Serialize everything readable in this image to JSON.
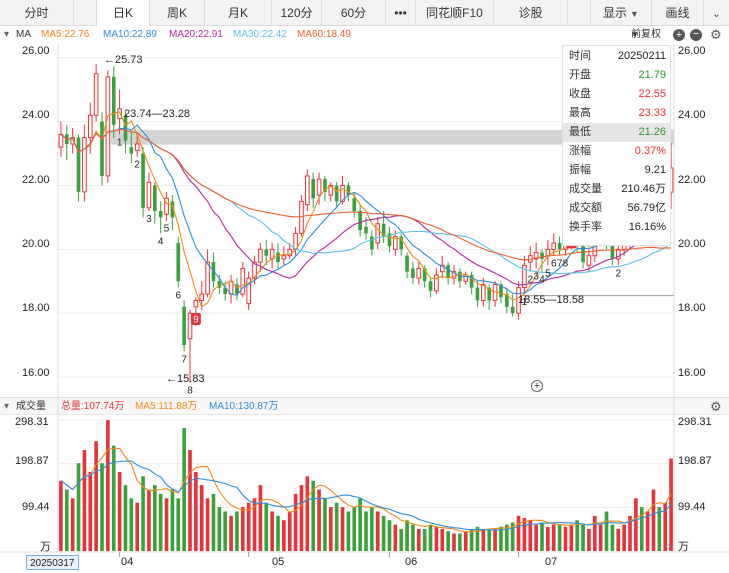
{
  "colors": {
    "up": "#e8333c",
    "down": "#3aa23a",
    "ma5": "#f08a17",
    "ma10": "#2a8fd8",
    "ma20": "#b4279d",
    "ma30": "#58c2e8",
    "ma60": "#f0602a",
    "total": "#e8333c",
    "label_red": "#e83030",
    "label_green": "#2a9a2a",
    "label_blue": "#2a8fd8"
  },
  "tabs": [
    {
      "label": "分时"
    },
    {
      "label": "日K",
      "active": true
    },
    {
      "label": "周K"
    },
    {
      "label": "月K"
    },
    {
      "label": "120分"
    },
    {
      "label": "60分"
    },
    {
      "label": "•••"
    },
    {
      "label": "同花顺F10"
    },
    {
      "label": "诊股"
    }
  ],
  "toolbar": {
    "display_label": "显示",
    "draw_label": "画线"
  },
  "ma_legend": {
    "title": "MA",
    "ma5": "MA5:22.76",
    "ma10": "MA10:22.89",
    "ma20": "MA20:22.91",
    "ma30": "MA30:22.42",
    "ma60": "MA60:18.49",
    "adjust": "前复权"
  },
  "price_axis": [
    "26.00",
    "24.00",
    "22.00",
    "20.00",
    "18.00",
    "16.00"
  ],
  "annotations": {
    "high": "←25.73",
    "low": "←15.83",
    "range1": "23.74—23.28",
    "range2": "18.55—18.58"
  },
  "info_panel": [
    {
      "label": "时间",
      "value": "20250211",
      "color": "#222"
    },
    {
      "label": "开盘",
      "value": "21.79",
      "color": "#2a9a2a"
    },
    {
      "label": "收盘",
      "value": "22.55",
      "color": "#e83030"
    },
    {
      "label": "最高",
      "value": "23.33",
      "color": "#e83030"
    },
    {
      "label": "最低",
      "value": "21.26",
      "color": "#2a9a2a",
      "highlight": true
    },
    {
      "label": "涨幅",
      "value": "0.37%",
      "color": "#e83030"
    },
    {
      "label": "振幅",
      "value": "9.21",
      "color": "#222"
    },
    {
      "label": "成交量",
      "value": "210.46万",
      "color": "#222"
    },
    {
      "label": "成交额",
      "value": "56.79亿",
      "color": "#222"
    },
    {
      "label": "换手率",
      "value": "16.16%",
      "color": "#222"
    }
  ],
  "volume_legend": {
    "title": "成交量",
    "total": "总量:107.74万",
    "ma5": "MA5:111.88万",
    "ma10": "MA10:130.87万"
  },
  "volume_axis": [
    "298.31",
    "198.87",
    "99.44"
  ],
  "volume_unit": "万",
  "x_axis": {
    "start_date": "20250317",
    "months": [
      "04",
      "05",
      "06",
      "07"
    ]
  },
  "chart_data": {
    "type": "candlestick",
    "price_ylim": [
      15.5,
      26.4
    ],
    "volume_ylim": [
      0,
      298.31
    ],
    "candles": [
      {
        "o": 23.2,
        "c": 23.6,
        "h": 24.0,
        "l": 22.9,
        "v": 160
      },
      {
        "o": 23.6,
        "c": 23.3,
        "h": 23.9,
        "l": 22.8,
        "v": 140
      },
      {
        "o": 23.3,
        "c": 23.5,
        "h": 23.8,
        "l": 23.0,
        "v": 120
      },
      {
        "o": 23.5,
        "c": 21.8,
        "h": 23.6,
        "l": 21.5,
        "v": 200
      },
      {
        "o": 21.8,
        "c": 23.5,
        "h": 23.9,
        "l": 21.5,
        "v": 230
      },
      {
        "o": 23.5,
        "c": 24.2,
        "h": 24.6,
        "l": 23.0,
        "v": 180
      },
      {
        "o": 24.2,
        "c": 25.5,
        "h": 25.8,
        "l": 24.0,
        "v": 250
      },
      {
        "o": 24.0,
        "c": 22.3,
        "h": 24.3,
        "l": 22.0,
        "v": 200
      },
      {
        "o": 22.3,
        "c": 25.4,
        "h": 25.6,
        "l": 22.1,
        "v": 298
      },
      {
        "o": 25.4,
        "c": 23.9,
        "h": 25.73,
        "l": 23.5,
        "v": 240
      },
      {
        "o": 24.1,
        "c": 24.4,
        "h": 25.0,
        "l": 23.6,
        "v": 180
      },
      {
        "o": 24.2,
        "c": 23.4,
        "h": 24.3,
        "l": 23.0,
        "v": 150
      },
      {
        "o": 23.2,
        "c": 23.0,
        "h": 23.7,
        "l": 22.7,
        "v": 120
      },
      {
        "o": 23.1,
        "c": 23.3,
        "h": 23.6,
        "l": 22.9,
        "v": 110
      },
      {
        "o": 23.0,
        "c": 21.3,
        "h": 23.2,
        "l": 21.0,
        "v": 170
      },
      {
        "o": 21.3,
        "c": 22.1,
        "h": 22.4,
        "l": 21.2,
        "v": 140
      },
      {
        "o": 22.0,
        "c": 21.2,
        "h": 22.1,
        "l": 20.8,
        "v": 150
      },
      {
        "o": 21.2,
        "c": 21.0,
        "h": 21.5,
        "l": 20.5,
        "v": 130
      },
      {
        "o": 21.1,
        "c": 21.6,
        "h": 21.8,
        "l": 20.9,
        "v": 120
      },
      {
        "o": 21.5,
        "c": 21.0,
        "h": 21.7,
        "l": 20.6,
        "v": 140
      },
      {
        "o": 20.2,
        "c": 19.0,
        "h": 20.4,
        "l": 18.8,
        "v": 120
      },
      {
        "o": 18.2,
        "c": 17.0,
        "h": 18.4,
        "l": 16.8,
        "v": 280
      },
      {
        "o": 17.2,
        "c": 18.0,
        "h": 18.1,
        "l": 15.83,
        "v": 230
      },
      {
        "o": 18.2,
        "c": 18.4,
        "h": 18.5,
        "l": 17.6,
        "v": 180
      },
      {
        "o": 18.4,
        "c": 18.6,
        "h": 19.0,
        "l": 18.1,
        "v": 150
      },
      {
        "o": 18.6,
        "c": 19.6,
        "h": 20.0,
        "l": 18.5,
        "v": 120
      },
      {
        "o": 19.6,
        "c": 19.0,
        "h": 19.9,
        "l": 18.8,
        "v": 130
      },
      {
        "o": 19.0,
        "c": 18.8,
        "h": 19.2,
        "l": 18.6,
        "v": 100
      },
      {
        "o": 18.8,
        "c": 18.6,
        "h": 19.0,
        "l": 18.4,
        "v": 90
      },
      {
        "o": 18.6,
        "c": 19.0,
        "h": 19.2,
        "l": 18.3,
        "v": 80
      },
      {
        "o": 18.9,
        "c": 18.6,
        "h": 19.1,
        "l": 18.4,
        "v": 90
      },
      {
        "o": 18.6,
        "c": 19.4,
        "h": 19.6,
        "l": 18.5,
        "v": 100
      },
      {
        "o": 18.3,
        "c": 19.1,
        "h": 19.3,
        "l": 18.1,
        "v": 110
      },
      {
        "o": 19.1,
        "c": 19.6,
        "h": 19.8,
        "l": 18.9,
        "v": 120
      },
      {
        "o": 19.6,
        "c": 20.0,
        "h": 20.2,
        "l": 19.3,
        "v": 150
      },
      {
        "o": 20.0,
        "c": 19.8,
        "h": 20.3,
        "l": 19.5,
        "v": 110
      },
      {
        "o": 19.7,
        "c": 20.0,
        "h": 20.2,
        "l": 19.4,
        "v": 90
      },
      {
        "o": 19.9,
        "c": 19.6,
        "h": 20.2,
        "l": 19.4,
        "v": 80
      },
      {
        "o": 19.7,
        "c": 19.8,
        "h": 20.1,
        "l": 19.5,
        "v": 70
      },
      {
        "o": 19.8,
        "c": 20.0,
        "h": 20.2,
        "l": 19.7,
        "v": 90
      },
      {
        "o": 20.0,
        "c": 20.5,
        "h": 20.7,
        "l": 19.8,
        "v": 130
      },
      {
        "o": 20.5,
        "c": 21.5,
        "h": 21.7,
        "l": 20.4,
        "v": 150
      },
      {
        "o": 21.4,
        "c": 22.3,
        "h": 22.5,
        "l": 21.2,
        "v": 170
      },
      {
        "o": 22.2,
        "c": 21.6,
        "h": 22.4,
        "l": 21.3,
        "v": 160
      },
      {
        "o": 21.7,
        "c": 22.2,
        "h": 22.4,
        "l": 21.4,
        "v": 140
      },
      {
        "o": 22.2,
        "c": 21.8,
        "h": 22.3,
        "l": 21.5,
        "v": 120
      },
      {
        "o": 21.7,
        "c": 22.0,
        "h": 22.1,
        "l": 21.5,
        "v": 100
      },
      {
        "o": 22.0,
        "c": 21.5,
        "h": 22.1,
        "l": 21.3,
        "v": 110
      },
      {
        "o": 21.5,
        "c": 22.0,
        "h": 22.3,
        "l": 21.4,
        "v": 100
      },
      {
        "o": 22.0,
        "c": 21.7,
        "h": 22.1,
        "l": 21.5,
        "v": 90
      },
      {
        "o": 21.6,
        "c": 21.2,
        "h": 21.8,
        "l": 21.0,
        "v": 100
      },
      {
        "o": 21.2,
        "c": 20.6,
        "h": 21.4,
        "l": 20.4,
        "v": 120
      },
      {
        "o": 20.7,
        "c": 20.5,
        "h": 21.0,
        "l": 20.3,
        "v": 90
      },
      {
        "o": 20.4,
        "c": 20.0,
        "h": 20.6,
        "l": 19.8,
        "v": 100
      },
      {
        "o": 20.2,
        "c": 20.8,
        "h": 21.0,
        "l": 20.0,
        "v": 90
      },
      {
        "o": 20.8,
        "c": 20.4,
        "h": 21.2,
        "l": 20.2,
        "v": 80
      },
      {
        "o": 20.5,
        "c": 20.1,
        "h": 20.7,
        "l": 19.9,
        "v": 70
      },
      {
        "o": 20.0,
        "c": 20.4,
        "h": 20.6,
        "l": 19.8,
        "v": 60
      },
      {
        "o": 20.4,
        "c": 20.0,
        "h": 20.5,
        "l": 19.8,
        "v": 50
      },
      {
        "o": 19.8,
        "c": 19.3,
        "h": 19.9,
        "l": 19.1,
        "v": 70
      },
      {
        "o": 19.4,
        "c": 19.1,
        "h": 19.6,
        "l": 18.9,
        "v": 60
      },
      {
        "o": 19.1,
        "c": 19.4,
        "h": 19.6,
        "l": 18.9,
        "v": 50
      },
      {
        "o": 19.4,
        "c": 19.0,
        "h": 19.5,
        "l": 18.8,
        "v": 50
      },
      {
        "o": 19.0,
        "c": 18.7,
        "h": 19.1,
        "l": 18.5,
        "v": 60
      },
      {
        "o": 18.7,
        "c": 19.2,
        "h": 19.4,
        "l": 18.6,
        "v": 55
      },
      {
        "o": 19.3,
        "c": 19.5,
        "h": 19.8,
        "l": 19.1,
        "v": 50
      },
      {
        "o": 19.5,
        "c": 19.1,
        "h": 19.6,
        "l": 18.9,
        "v": 45
      },
      {
        "o": 19.1,
        "c": 19.3,
        "h": 19.5,
        "l": 18.9,
        "v": 40
      },
      {
        "o": 19.3,
        "c": 19.0,
        "h": 19.4,
        "l": 18.8,
        "v": 40
      },
      {
        "o": 19.0,
        "c": 19.2,
        "h": 19.3,
        "l": 18.9,
        "v": 45
      },
      {
        "o": 19.2,
        "c": 18.8,
        "h": 19.3,
        "l": 18.6,
        "v": 50
      },
      {
        "o": 18.8,
        "c": 18.4,
        "h": 19.0,
        "l": 18.2,
        "v": 55
      },
      {
        "o": 18.4,
        "c": 18.9,
        "h": 19.1,
        "l": 18.2,
        "v": 50
      },
      {
        "o": 18.8,
        "c": 18.4,
        "h": 18.9,
        "l": 18.1,
        "v": 50
      },
      {
        "o": 18.4,
        "c": 18.9,
        "h": 19.0,
        "l": 18.2,
        "v": 50
      },
      {
        "o": 18.9,
        "c": 18.5,
        "h": 19.0,
        "l": 18.3,
        "v": 55
      },
      {
        "o": 18.6,
        "c": 18.2,
        "h": 18.8,
        "l": 18.0,
        "v": 60
      },
      {
        "o": 18.2,
        "c": 18.0,
        "h": 18.6,
        "l": 17.9,
        "v": 65
      },
      {
        "o": 18.0,
        "c": 18.8,
        "h": 19.0,
        "l": 17.8,
        "v": 80
      },
      {
        "o": 18.8,
        "c": 19.5,
        "h": 19.8,
        "l": 18.6,
        "v": 75
      },
      {
        "o": 19.6,
        "c": 19.8,
        "h": 20.1,
        "l": 19.3,
        "v": 70
      },
      {
        "o": 19.7,
        "c": 19.9,
        "h": 20.2,
        "l": 19.4,
        "v": 60
      },
      {
        "o": 19.9,
        "c": 19.7,
        "h": 20.0,
        "l": 19.3,
        "v": 65
      },
      {
        "o": 19.8,
        "c": 20.0,
        "h": 20.3,
        "l": 19.5,
        "v": 55
      },
      {
        "o": 20.0,
        "c": 20.2,
        "h": 20.5,
        "l": 19.8,
        "v": 60
      },
      {
        "o": 20.2,
        "c": 20.0,
        "h": 20.4,
        "l": 19.8,
        "v": 60
      },
      {
        "o": 20.0,
        "c": 20.3,
        "h": 20.6,
        "l": 19.8,
        "v": 55
      },
      {
        "o": 20.3,
        "c": 20.6,
        "h": 20.8,
        "l": 20.0,
        "v": 60
      },
      {
        "o": 20.6,
        "c": 20.2,
        "h": 20.7,
        "l": 19.9,
        "v": 70
      },
      {
        "o": 20.1,
        "c": 19.6,
        "h": 20.2,
        "l": 19.4,
        "v": 60
      },
      {
        "o": 19.5,
        "c": 19.8,
        "h": 20.0,
        "l": 19.3,
        "v": 50
      },
      {
        "o": 19.8,
        "c": 20.4,
        "h": 20.6,
        "l": 19.6,
        "v": 80
      },
      {
        "o": 20.4,
        "c": 20.6,
        "h": 20.8,
        "l": 20.1,
        "v": 60
      },
      {
        "o": 20.6,
        "c": 20.2,
        "h": 20.8,
        "l": 20.0,
        "v": 90
      },
      {
        "o": 20.2,
        "c": 19.7,
        "h": 20.4,
        "l": 19.5,
        "v": 60
      },
      {
        "o": 19.7,
        "c": 20.0,
        "h": 20.2,
        "l": 19.5,
        "v": 50
      },
      {
        "o": 20.0,
        "c": 20.3,
        "h": 20.4,
        "l": 19.8,
        "v": 60
      },
      {
        "o": 20.2,
        "c": 20.8,
        "h": 21.0,
        "l": 20.0,
        "v": 80
      },
      {
        "o": 20.8,
        "c": 21.3,
        "h": 21.6,
        "l": 20.6,
        "v": 120
      },
      {
        "o": 21.3,
        "c": 21.0,
        "h": 21.5,
        "l": 20.8,
        "v": 100
      },
      {
        "o": 21.0,
        "c": 21.4,
        "h": 21.7,
        "l": 20.8,
        "v": 90
      },
      {
        "o": 21.4,
        "c": 21.8,
        "h": 22.0,
        "l": 21.2,
        "v": 140
      },
      {
        "o": 21.8,
        "c": 20.8,
        "h": 22.0,
        "l": 20.6,
        "v": 100
      },
      {
        "o": 20.8,
        "c": 21.5,
        "h": 21.8,
        "l": 20.6,
        "v": 110
      },
      {
        "o": 21.79,
        "c": 22.55,
        "h": 23.33,
        "l": 21.26,
        "v": 210.46
      }
    ],
    "markers": [
      {
        "i": 10,
        "text": "1"
      },
      {
        "i": 13,
        "text": "2"
      },
      {
        "i": 15,
        "text": "3"
      },
      {
        "i": 17,
        "text": "4"
      },
      {
        "i": 18,
        "text": "5"
      },
      {
        "i": 20,
        "text": "6"
      },
      {
        "i": 21,
        "text": "7"
      },
      {
        "i": 22,
        "text": "8"
      },
      {
        "i": 79,
        "text": "1"
      },
      {
        "i": 80,
        "text": "2"
      },
      {
        "i": 81,
        "text": "3"
      },
      {
        "i": 82,
        "text": "4"
      },
      {
        "i": 83,
        "text": "5"
      },
      {
        "i": 84,
        "text": "6"
      },
      {
        "i": 85,
        "text": "7"
      },
      {
        "i": 86,
        "text": "8"
      },
      {
        "i": 95,
        "text": "2"
      }
    ],
    "icon_markers": [
      {
        "i": 23,
        "text": "9"
      },
      {
        "i": 87,
        "text": "9"
      }
    ],
    "highlight_band": {
      "from_i": 9,
      "y_low": 23.28,
      "y_high": 23.74
    },
    "support_line": {
      "from_i": 78,
      "y": 18.55
    },
    "month_ticks": [
      {
        "i": 10,
        "label": "04"
      },
      {
        "i": 32,
        "label": "05"
      },
      {
        "i": 56,
        "label": "06"
      },
      {
        "i": 78,
        "label": "07"
      }
    ]
  }
}
